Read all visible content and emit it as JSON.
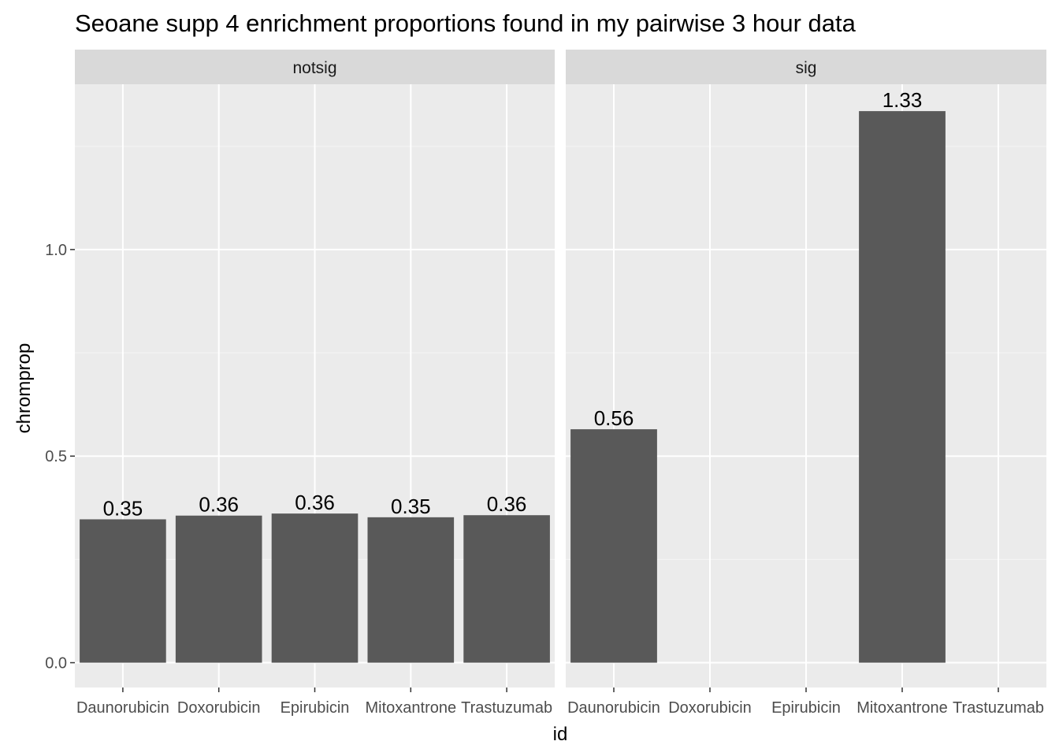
{
  "chart_data": {
    "type": "bar",
    "title": "Seoane supp 4 enrichment proportions found in my pairwise 3 hour data",
    "xlabel": "id",
    "ylabel": "chromprop",
    "categories": [
      "Daunorubicin",
      "Doxorubicin",
      "Epirubicin",
      "Mitoxantrone",
      "Trastuzumab"
    ],
    "ylim": [
      -0.06,
      1.4
    ],
    "yticks": [
      0.0,
      0.5,
      1.0
    ],
    "ytick_labels": [
      "0.0",
      "0.5",
      "1.0"
    ],
    "grid": true,
    "facets": [
      {
        "label": "notsig",
        "values": [
          0.347,
          0.356,
          0.361,
          0.352,
          0.357
        ],
        "data_labels": [
          "0.35",
          "0.36",
          "0.36",
          "0.35",
          "0.36"
        ]
      },
      {
        "label": "sig",
        "values": [
          0.565,
          null,
          null,
          1.335,
          null
        ],
        "data_labels": [
          "0.56",
          "",
          "",
          "1.33",
          ""
        ]
      }
    ],
    "colors": {
      "bar": "#595959",
      "panel_bg": "#ebebeb",
      "strip_bg": "#d9d9d9",
      "grid_major": "#ffffff",
      "grid_minor": "#f5f5f5"
    }
  }
}
